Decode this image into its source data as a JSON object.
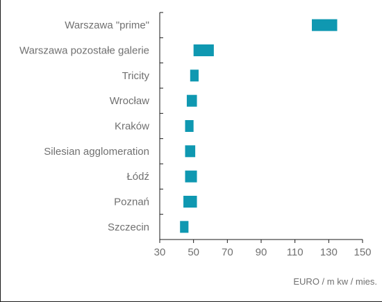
{
  "chart_data": {
    "type": "floating-bar",
    "orientation": "horizontal",
    "categories": [
      "Warszawa \"prime\"",
      "Warszawa pozostałe galerie",
      "Tricity",
      "Wrocław",
      "Kraków",
      "Silesian agglomeration",
      "Łódź",
      "Poznań",
      "Szczecin"
    ],
    "ranges": [
      [
        120,
        135
      ],
      [
        50,
        62
      ],
      [
        48,
        53
      ],
      [
        46,
        52
      ],
      [
        45,
        50
      ],
      [
        45,
        51
      ],
      [
        45,
        52
      ],
      [
        44,
        52
      ],
      [
        42,
        47
      ]
    ],
    "xlim": [
      30,
      150
    ],
    "xticks": [
      "30",
      "50",
      "70",
      "90",
      "110",
      "130",
      "150"
    ],
    "unit_label": "EURO / m kw / mies.",
    "bar_color": "#0f98b1",
    "axis_color": "#1a1a1a",
    "text_color": "#707070",
    "grid": false,
    "legend": "none"
  }
}
